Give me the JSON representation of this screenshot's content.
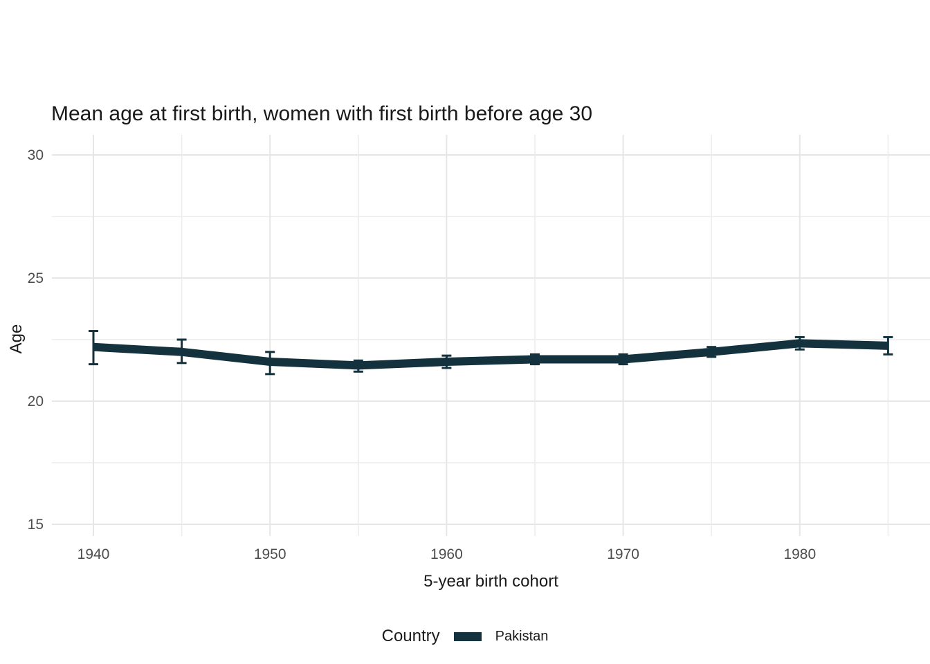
{
  "title": "Mean age at first birth, women with first birth before age 30",
  "axes": {
    "x_title": "5-year birth cohort",
    "y_title": "Age",
    "x_tick_labels": [
      "1940",
      "1950",
      "1960",
      "1970",
      "1980"
    ],
    "y_tick_labels": [
      "15",
      "20",
      "25",
      "30"
    ]
  },
  "legend": {
    "title": "Country",
    "entries": [
      {
        "label": "Pakistan",
        "color": "#14323e"
      }
    ]
  },
  "colors": {
    "series": "#14323e",
    "grid_major": "#e6e6e6",
    "grid_minor": "#ececec",
    "tick_text": "#4d4d4d",
    "text": "#1a1a1a",
    "background": "#ffffff"
  },
  "chart_data": {
    "type": "line",
    "title": "Mean age at first birth, women with first birth before age 30",
    "xlabel": "5-year birth cohort",
    "ylabel": "Age",
    "x": [
      1940,
      1945,
      1950,
      1955,
      1960,
      1965,
      1970,
      1975,
      1980,
      1985
    ],
    "series": [
      {
        "name": "Pakistan",
        "values": [
          22.2,
          22.0,
          21.6,
          21.45,
          21.6,
          21.7,
          21.7,
          22.0,
          22.35,
          22.25
        ],
        "ci_lower": [
          21.5,
          21.55,
          21.1,
          21.2,
          21.35,
          21.5,
          21.5,
          21.8,
          22.1,
          21.9
        ],
        "ci_upper": [
          22.85,
          22.5,
          22.0,
          21.65,
          21.85,
          21.9,
          21.9,
          22.2,
          22.6,
          22.6
        ]
      }
    ],
    "xticks_major": [
      1940,
      1950,
      1960,
      1970,
      1980
    ],
    "xticks_minor": [
      1945,
      1955,
      1965,
      1975,
      1985
    ],
    "yticks_major": [
      15,
      20,
      25,
      30
    ],
    "yticks_minor": [
      17.5,
      22.5,
      27.5
    ],
    "ylim": [
      14.5,
      30.8
    ],
    "xlim": [
      1937.6,
      1987.4
    ],
    "grid": "on",
    "legend_position": "bottom",
    "error_bars": true
  }
}
